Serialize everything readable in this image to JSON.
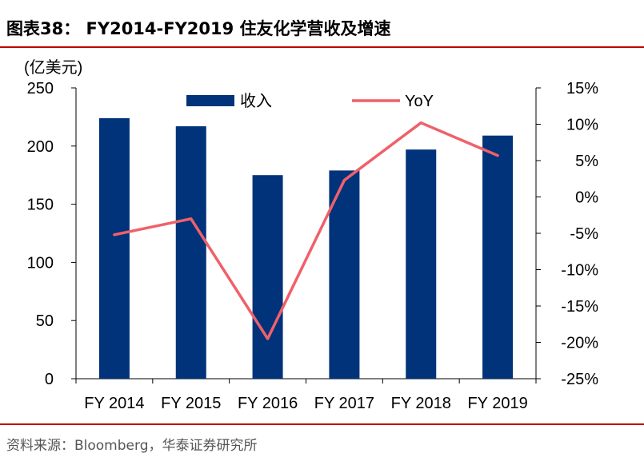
{
  "header": {
    "title": "图表38：  FY2014-FY2019 住友化学营收及增速"
  },
  "footer": {
    "source": "资料来源：Bloomberg，华泰证券研究所"
  },
  "colors": {
    "bar": "#00337a",
    "line": "#f0606a",
    "rule": "#c00000"
  },
  "chart_data": {
    "type": "bar+line",
    "categories": [
      "FY 2014",
      "FY 2015",
      "FY 2016",
      "FY 2017",
      "FY 2018",
      "FY 2019"
    ],
    "series": [
      {
        "name": "收入",
        "type": "bar",
        "axis": "left",
        "values": [
          224,
          217,
          175,
          179,
          197,
          209
        ]
      },
      {
        "name": "YoY",
        "type": "line",
        "axis": "right",
        "values": [
          -5.2,
          -3.0,
          -19.5,
          2.3,
          10.2,
          5.7
        ]
      }
    ],
    "y_left": {
      "label": "(亿美元)",
      "min": 0,
      "max": 250,
      "ticks": [
        "0",
        "50",
        "100",
        "150",
        "200",
        "250"
      ]
    },
    "y_right": {
      "min": -25,
      "max": 15,
      "ticks": [
        "-25%",
        "-20%",
        "-15%",
        "-10%",
        "-5%",
        "0%",
        "5%",
        "10%",
        "15%"
      ]
    },
    "legend": {
      "position": "top",
      "entries": [
        "收入",
        "YoY"
      ]
    },
    "grid": false
  }
}
